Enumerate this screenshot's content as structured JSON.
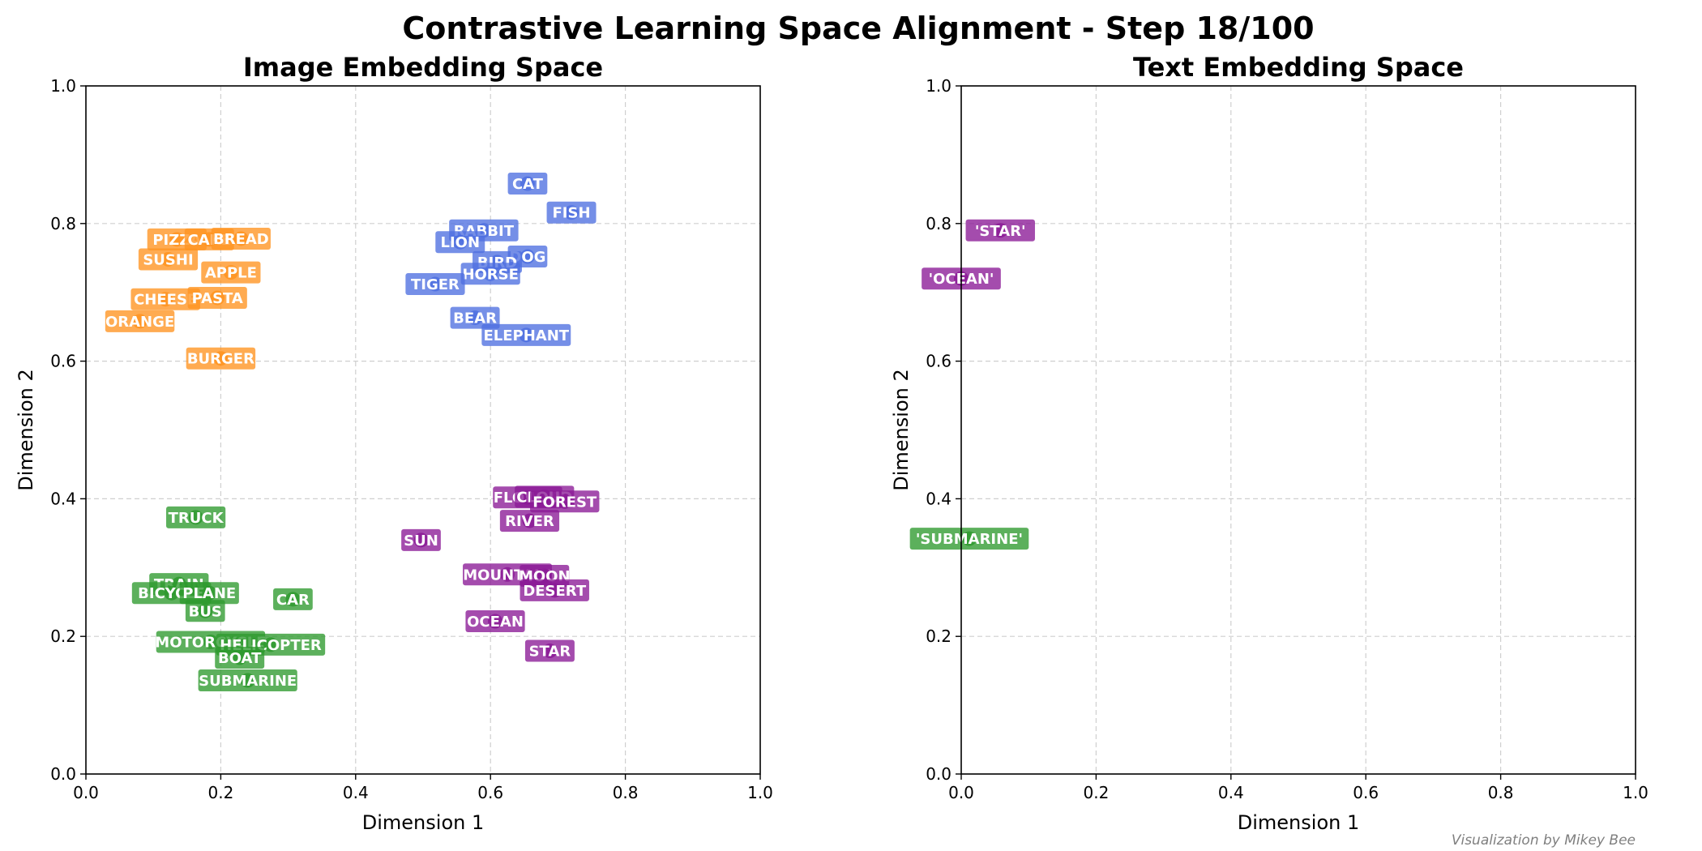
{
  "figure": {
    "suptitle": "Contrastive Learning Space Alignment - Step 18/100",
    "credit": "Visualization by Mikey Bee"
  },
  "colors": {
    "animals": "#4e6fe0",
    "food": "#ff9420",
    "vehicles": "#2e9a2e",
    "nature": "#8a1a96",
    "grid": "#cfcfcf",
    "axes": "#000000"
  },
  "chart_data": [
    {
      "type": "scatter",
      "title": "Image Embedding Space",
      "xlabel": "Dimension 1",
      "ylabel": "Dimension 2",
      "xlim": [
        0,
        1
      ],
      "ylim": [
        0,
        1
      ],
      "grid": true,
      "xticks": [
        "0.0",
        "0.2",
        "0.4",
        "0.6",
        "0.8",
        "1.0"
      ],
      "yticks": [
        "0.0",
        "0.2",
        "0.4",
        "0.6",
        "0.8",
        "1.0"
      ],
      "points": [
        {
          "label": "CAT",
          "x": 0.655,
          "y": 0.858,
          "group": "animals"
        },
        {
          "label": "FISH",
          "x": 0.72,
          "y": 0.816,
          "group": "animals"
        },
        {
          "label": "RABBIT",
          "x": 0.59,
          "y": 0.79,
          "group": "animals"
        },
        {
          "label": "LION",
          "x": 0.555,
          "y": 0.773,
          "group": "animals"
        },
        {
          "label": "DOG",
          "x": 0.655,
          "y": 0.752,
          "group": "animals"
        },
        {
          "label": "BIRD",
          "x": 0.61,
          "y": 0.744,
          "group": "animals"
        },
        {
          "label": "HORSE",
          "x": 0.6,
          "y": 0.727,
          "group": "animals"
        },
        {
          "label": "TIGER",
          "x": 0.518,
          "y": 0.712,
          "group": "animals"
        },
        {
          "label": "BEAR",
          "x": 0.577,
          "y": 0.663,
          "group": "animals"
        },
        {
          "label": "ELEPHANT",
          "x": 0.653,
          "y": 0.638,
          "group": "animals"
        },
        {
          "label": "PIZZA",
          "x": 0.135,
          "y": 0.777,
          "group": "food"
        },
        {
          "label": "CAKE",
          "x": 0.183,
          "y": 0.777,
          "group": "food"
        },
        {
          "label": "BREAD",
          "x": 0.23,
          "y": 0.778,
          "group": "food"
        },
        {
          "label": "SUSHI",
          "x": 0.122,
          "y": 0.748,
          "group": "food"
        },
        {
          "label": "APPLE",
          "x": 0.215,
          "y": 0.729,
          "group": "food"
        },
        {
          "label": "CHEESE",
          "x": 0.118,
          "y": 0.69,
          "group": "food"
        },
        {
          "label": "PASTA",
          "x": 0.195,
          "y": 0.692,
          "group": "food"
        },
        {
          "label": "ORANGE",
          "x": 0.08,
          "y": 0.658,
          "group": "food"
        },
        {
          "label": "BURGER",
          "x": 0.2,
          "y": 0.604,
          "group": "food"
        },
        {
          "label": "TRUCK",
          "x": 0.163,
          "y": 0.373,
          "group": "vehicles"
        },
        {
          "label": "TRAIN",
          "x": 0.138,
          "y": 0.276,
          "group": "vehicles"
        },
        {
          "label": "BICYCLE",
          "x": 0.127,
          "y": 0.263,
          "group": "vehicles"
        },
        {
          "label": "PLANE",
          "x": 0.183,
          "y": 0.263,
          "group": "vehicles"
        },
        {
          "label": "BUS",
          "x": 0.177,
          "y": 0.237,
          "group": "vehicles"
        },
        {
          "label": "CAR",
          "x": 0.307,
          "y": 0.254,
          "group": "vehicles"
        },
        {
          "label": "MOTORCYCLE",
          "x": 0.185,
          "y": 0.192,
          "group": "vehicles"
        },
        {
          "label": "HELICOPTER",
          "x": 0.274,
          "y": 0.188,
          "group": "vehicles"
        },
        {
          "label": "BOAT",
          "x": 0.228,
          "y": 0.169,
          "group": "vehicles"
        },
        {
          "label": "SUBMARINE",
          "x": 0.24,
          "y": 0.136,
          "group": "vehicles"
        },
        {
          "label": "FLOWER",
          "x": 0.655,
          "y": 0.402,
          "group": "nature"
        },
        {
          "label": "CLOUD",
          "x": 0.68,
          "y": 0.403,
          "group": "nature"
        },
        {
          "label": "FOREST",
          "x": 0.71,
          "y": 0.396,
          "group": "nature"
        },
        {
          "label": "RIVER",
          "x": 0.658,
          "y": 0.368,
          "group": "nature"
        },
        {
          "label": "SUN",
          "x": 0.497,
          "y": 0.34,
          "group": "nature"
        },
        {
          "label": "MOUNTAIN",
          "x": 0.625,
          "y": 0.29,
          "group": "nature"
        },
        {
          "label": "MOON",
          "x": 0.68,
          "y": 0.288,
          "group": "nature"
        },
        {
          "label": "DESERT",
          "x": 0.695,
          "y": 0.267,
          "group": "nature"
        },
        {
          "label": "OCEAN",
          "x": 0.607,
          "y": 0.222,
          "group": "nature"
        },
        {
          "label": "STAR",
          "x": 0.688,
          "y": 0.179,
          "group": "nature"
        }
      ]
    },
    {
      "type": "scatter",
      "title": "Text Embedding Space",
      "xlabel": "Dimension 1",
      "ylabel": "Dimension 2",
      "xlim": [
        0,
        1
      ],
      "ylim": [
        0,
        1
      ],
      "grid": true,
      "xticks": [
        "0.0",
        "0.2",
        "0.4",
        "0.6",
        "0.8",
        "1.0"
      ],
      "yticks": [
        "0.0",
        "0.2",
        "0.4",
        "0.6",
        "0.8",
        "1.0"
      ],
      "points": [
        {
          "label": "'STAR'",
          "x": 0.058,
          "y": 0.79,
          "group": "nature"
        },
        {
          "label": "'OCEAN'",
          "x": 0.0,
          "y": 0.72,
          "group": "nature"
        },
        {
          "label": "'SUBMARINE'",
          "x": 0.012,
          "y": 0.342,
          "group": "vehicles"
        }
      ]
    }
  ]
}
